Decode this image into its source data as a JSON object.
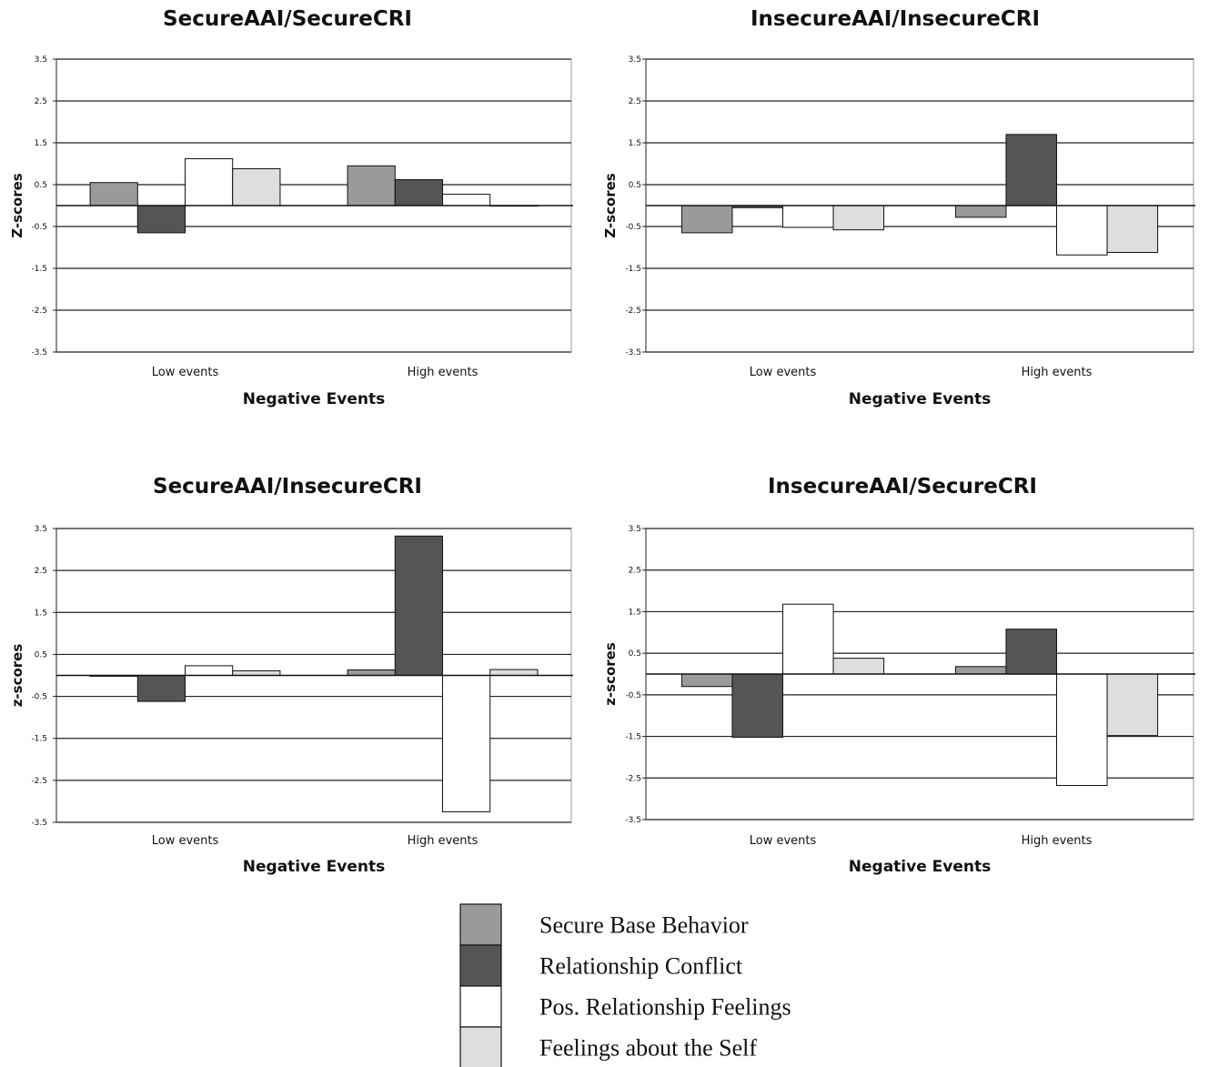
{
  "chart_data": [
    {
      "type": "bar",
      "title": "SecureAAI/SecureCRI",
      "xlabel": "Negative Events",
      "ylabel": "Z-scores",
      "categories": [
        "Low events",
        "High events"
      ],
      "ylim": [
        -3.5,
        3.5
      ],
      "yticks": [
        "3.5",
        "2.5",
        "1.5",
        "0.5",
        "-0.5",
        "-1.5",
        "-2.5",
        "-3.5"
      ],
      "grid": true,
      "series": [
        {
          "name": "Secure Base Behavior",
          "values": [
            0.55,
            0.95
          ]
        },
        {
          "name": "Relationship Conflict",
          "values": [
            -0.65,
            0.62
          ]
        },
        {
          "name": "Pos. Relationship Feelings",
          "values": [
            1.12,
            0.27
          ]
        },
        {
          "name": "Feelings about the Self",
          "values": [
            0.88,
            0.0
          ]
        }
      ]
    },
    {
      "type": "bar",
      "title": "InsecureAAI/InsecureCRI",
      "xlabel": "Negative Events",
      "ylabel": "Z-scores",
      "categories": [
        "Low events",
        "High events"
      ],
      "ylim": [
        -3.5,
        3.5
      ],
      "yticks": [
        "3.5",
        "2.5",
        "1.5",
        "0.5",
        "-0.5",
        "-1.5",
        "-2.5",
        "-3.5"
      ],
      "grid": true,
      "series": [
        {
          "name": "Secure Base Behavior",
          "values": [
            -0.65,
            -0.28
          ]
        },
        {
          "name": "Relationship Conflict",
          "values": [
            -0.05,
            1.7
          ]
        },
        {
          "name": "Pos. Relationship Feelings",
          "values": [
            -0.52,
            -1.18
          ]
        },
        {
          "name": "Feelings about the Self",
          "values": [
            -0.58,
            -1.12
          ]
        }
      ]
    },
    {
      "type": "bar",
      "title": "SecureAAI/InsecureCRI",
      "xlabel": "Negative Events",
      "ylabel": "z-scores",
      "categories": [
        "Low events",
        "High events"
      ],
      "ylim": [
        -3.5,
        3.5
      ],
      "yticks": [
        "3.5",
        "2.5",
        "1.5",
        "0.5",
        "-0.5",
        "-1.5",
        "-2.5",
        "-3.5"
      ],
      "grid": true,
      "series": [
        {
          "name": "Secure Base Behavior",
          "values": [
            -0.02,
            0.13
          ]
        },
        {
          "name": "Relationship Conflict",
          "values": [
            -0.62,
            3.32
          ]
        },
        {
          "name": "Pos. Relationship Feelings",
          "values": [
            0.23,
            -3.25
          ]
        },
        {
          "name": "Feelings about the Self",
          "values": [
            0.11,
            0.14
          ]
        }
      ]
    },
    {
      "type": "bar",
      "title": "InsecureAAI/SecureCRI",
      "xlabel": "Negative Events",
      "ylabel": "z-scores",
      "categories": [
        "Low events",
        "High events"
      ],
      "ylim": [
        -3.5,
        3.5
      ],
      "yticks": [
        "3.5",
        "2.5",
        "1.5",
        "0.5",
        "-0.5",
        "-1.5",
        "-2.5",
        "-3.5"
      ],
      "grid": true,
      "series": [
        {
          "name": "Secure Base Behavior",
          "values": [
            -0.3,
            0.18
          ]
        },
        {
          "name": "Relationship Conflict",
          "values": [
            -1.52,
            1.08
          ]
        },
        {
          "name": "Pos. Relationship Feelings",
          "values": [
            1.68,
            -2.68
          ]
        },
        {
          "name": "Feelings about the Self",
          "values": [
            0.38,
            -1.48
          ]
        }
      ]
    }
  ],
  "colors": {
    "Secure Base Behavior": "#9a9a9a",
    "Relationship Conflict": "#555555",
    "Pos. Relationship Feelings": "#ffffff",
    "Feelings about the Self": "#dedede"
  },
  "legend": {
    "placement": "bottom-center",
    "items": [
      "Secure Base Behavior",
      "Relationship Conflict",
      "Pos. Relationship Feelings",
      "Feelings about the Self"
    ]
  }
}
